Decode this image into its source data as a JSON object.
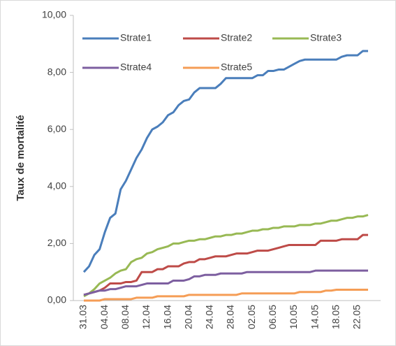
{
  "chart_data": {
    "type": "line",
    "y_label": "Taux de mortalité",
    "categories": [
      "31.03",
      null,
      null,
      null,
      "04.04",
      null,
      null,
      null,
      "08.04",
      null,
      null,
      null,
      "12.04",
      null,
      null,
      null,
      "16.04",
      null,
      null,
      null,
      "20.04",
      null,
      null,
      null,
      "24.04",
      null,
      null,
      null,
      "28.04",
      null,
      null,
      null,
      "02.05",
      null,
      null,
      null,
      "06.05",
      null,
      null,
      null,
      "10.05",
      null,
      null,
      null,
      "14.05",
      null,
      null,
      null,
      "18.05",
      null,
      null,
      null,
      "22.05",
      null,
      null
    ],
    "series": [
      {
        "name": "Strate1",
        "color": "#4a7ebb",
        "values": [
          1.0,
          1.2,
          1.6,
          1.8,
          2.4,
          2.9,
          3.05,
          3.9,
          4.2,
          4.6,
          5.0,
          5.3,
          5.7,
          6.0,
          6.1,
          6.25,
          6.5,
          6.6,
          6.85,
          7.0,
          7.05,
          7.3,
          7.45,
          7.45,
          7.45,
          7.45,
          7.6,
          7.8,
          7.8,
          7.8,
          7.8,
          7.8,
          7.8,
          7.9,
          7.9,
          8.05,
          8.05,
          8.1,
          8.1,
          8.2,
          8.3,
          8.4,
          8.45,
          8.45,
          8.45,
          8.45,
          8.45,
          8.45,
          8.45,
          8.55,
          8.6,
          8.6,
          8.6,
          8.75,
          8.75
        ]
      },
      {
        "name": "Strate2",
        "color": "#be4b48",
        "values": [
          0.2,
          0.25,
          0.3,
          0.35,
          0.45,
          0.6,
          0.6,
          0.6,
          0.65,
          0.65,
          0.7,
          1.0,
          1.0,
          1.0,
          1.1,
          1.1,
          1.2,
          1.2,
          1.2,
          1.3,
          1.35,
          1.35,
          1.45,
          1.45,
          1.5,
          1.55,
          1.55,
          1.55,
          1.6,
          1.65,
          1.65,
          1.65,
          1.7,
          1.75,
          1.75,
          1.75,
          1.8,
          1.85,
          1.9,
          1.95,
          1.95,
          1.95,
          1.95,
          1.95,
          1.95,
          2.1,
          2.1,
          2.1,
          2.1,
          2.15,
          2.15,
          2.15,
          2.15,
          2.3,
          2.3
        ]
      },
      {
        "name": "Strate3",
        "color": "#98b954",
        "values": [
          0.15,
          0.25,
          0.4,
          0.6,
          0.7,
          0.8,
          0.95,
          1.05,
          1.1,
          1.35,
          1.45,
          1.5,
          1.65,
          1.7,
          1.8,
          1.85,
          1.9,
          2.0,
          2.0,
          2.05,
          2.1,
          2.1,
          2.15,
          2.15,
          2.2,
          2.25,
          2.25,
          2.3,
          2.3,
          2.35,
          2.35,
          2.4,
          2.45,
          2.45,
          2.5,
          2.5,
          2.55,
          2.55,
          2.6,
          2.6,
          2.6,
          2.65,
          2.65,
          2.65,
          2.7,
          2.7,
          2.75,
          2.8,
          2.8,
          2.85,
          2.9,
          2.9,
          2.95,
          2.95,
          3.0
        ]
      },
      {
        "name": "Strate4",
        "color": "#7d5fa0",
        "values": [
          0.2,
          0.25,
          0.3,
          0.35,
          0.35,
          0.4,
          0.4,
          0.45,
          0.5,
          0.5,
          0.5,
          0.55,
          0.6,
          0.6,
          0.6,
          0.6,
          0.6,
          0.7,
          0.7,
          0.7,
          0.75,
          0.85,
          0.85,
          0.9,
          0.9,
          0.9,
          0.95,
          0.95,
          0.95,
          0.95,
          0.95,
          1.0,
          1.0,
          1.0,
          1.0,
          1.0,
          1.0,
          1.0,
          1.0,
          1.0,
          1.0,
          1.0,
          1.0,
          1.0,
          1.05,
          1.05,
          1.05,
          1.05,
          1.05,
          1.05,
          1.05,
          1.05,
          1.05,
          1.05,
          1.05
        ]
      },
      {
        "name": "Strate5",
        "color": "#f59d56",
        "values": [
          0,
          0,
          0,
          0,
          0.05,
          0.05,
          0.05,
          0.05,
          0.05,
          0.05,
          0.1,
          0.1,
          0.1,
          0.1,
          0.15,
          0.15,
          0.15,
          0.15,
          0.15,
          0.15,
          0.2,
          0.2,
          0.2,
          0.2,
          0.2,
          0.2,
          0.2,
          0.2,
          0.2,
          0.2,
          0.25,
          0.25,
          0.25,
          0.25,
          0.25,
          0.25,
          0.25,
          0.25,
          0.25,
          0.25,
          0.25,
          0.3,
          0.3,
          0.3,
          0.3,
          0.3,
          0.35,
          0.35,
          0.38,
          0.38,
          0.38,
          0.38,
          0.38,
          0.38,
          0.38
        ]
      }
    ],
    "ylim": [
      0,
      10
    ],
    "yticks": [
      {
        "value": 0,
        "label": "0,00"
      },
      {
        "value": 2,
        "label": "2,00"
      },
      {
        "value": 4,
        "label": "4,00"
      },
      {
        "value": 6,
        "label": "6,00"
      },
      {
        "value": 8,
        "label": "8,00"
      },
      {
        "value": 10,
        "label": "10,00"
      }
    ],
    "grid": false
  }
}
